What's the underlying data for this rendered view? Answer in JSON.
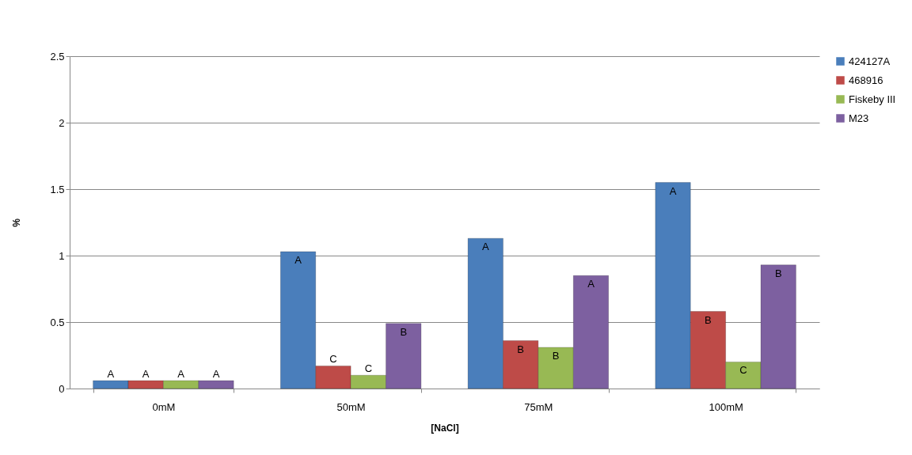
{
  "chart_data": {
    "type": "bar",
    "xlabel": "[NaCl]",
    "ylabel": "%",
    "categories": [
      "0mM",
      "50mM",
      "75mM",
      "100mM"
    ],
    "series": [
      {
        "name": "424127A",
        "color": "#4a7ebb",
        "values": [
          0.06,
          1.03,
          1.13,
          1.55
        ],
        "value_labels": [
          "A",
          "A",
          "A",
          "A"
        ]
      },
      {
        "name": "468916",
        "color": "#be4b48",
        "values": [
          0.06,
          0.17,
          0.36,
          0.58
        ],
        "value_labels": [
          "A",
          "C",
          "B",
          "B"
        ]
      },
      {
        "name": "Fiskeby III",
        "color": "#98b954",
        "values": [
          0.06,
          0.1,
          0.31,
          0.2
        ],
        "value_labels": [
          "A",
          "C",
          "B",
          "C"
        ]
      },
      {
        "name": "M23",
        "color": "#7d60a0",
        "values": [
          0.06,
          0.49,
          0.85,
          0.93
        ],
        "value_labels": [
          "A",
          "B",
          "A",
          "B"
        ]
      }
    ],
    "ylim": [
      0,
      2.5
    ],
    "yticks": [
      0,
      0.5,
      1,
      1.5,
      2,
      2.5
    ],
    "grid": "y",
    "legend": "right"
  }
}
